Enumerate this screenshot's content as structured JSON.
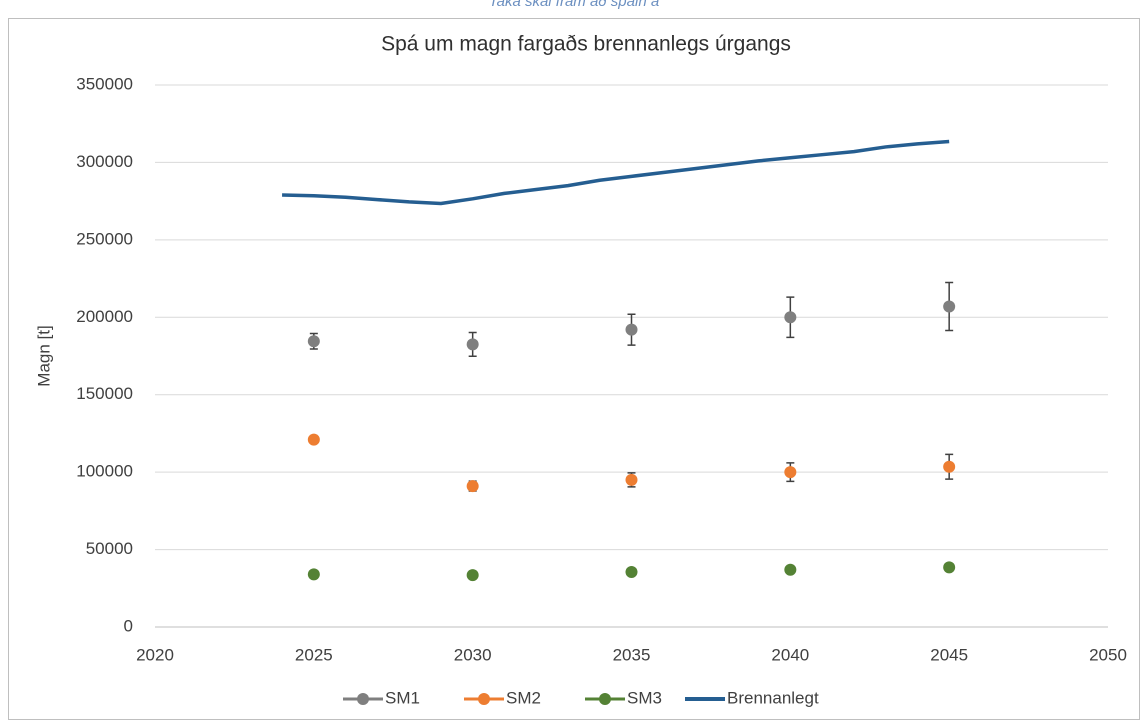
{
  "caption": "Taka skal fram að spáin á",
  "chart_data": {
    "type": "scatter",
    "title": "Spá um magn fargaðs brennanlegs úrgangs",
    "ylabel": "Magn [t]",
    "xlim": [
      2020,
      2050
    ],
    "xticks": [
      2020,
      2025,
      2030,
      2035,
      2040,
      2045,
      2050
    ],
    "ylim": [
      0,
      350000
    ],
    "yticks": [
      0,
      50000,
      100000,
      150000,
      200000,
      250000,
      300000,
      350000
    ],
    "grid": true,
    "legend": "bottom",
    "series": [
      {
        "name": "SM1",
        "color": "#7f7f7f",
        "x": [
          2025,
          2030,
          2035,
          2040,
          2045
        ],
        "values": [
          184500,
          182500,
          192000,
          200000,
          207000
        ],
        "errors": [
          5000,
          7700,
          10000,
          13000,
          15500
        ]
      },
      {
        "name": "SM2",
        "color": "#ed7d31",
        "x": [
          2025,
          2030,
          2035,
          2040,
          2045
        ],
        "values": [
          121000,
          91000,
          95000,
          100000,
          103500
        ],
        "errors": [
          2000,
          3200,
          4500,
          6000,
          8000
        ]
      },
      {
        "name": "SM3",
        "color": "#548235",
        "x": [
          2025,
          2030,
          2035,
          2040,
          2045
        ],
        "values": [
          34000,
          33500,
          35500,
          37000,
          38500
        ],
        "errors": [
          500,
          500,
          1000,
          1500,
          2000
        ]
      },
      {
        "name": "Brennanlegt",
        "color": "#255e91",
        "type": "line",
        "x": [
          2024,
          2025,
          2026,
          2027,
          2028,
          2029,
          2030,
          2031,
          2032,
          2033,
          2034,
          2035,
          2036,
          2037,
          2038,
          2039,
          2040,
          2041,
          2042,
          2043,
          2044,
          2045
        ],
        "values": [
          279000,
          278500,
          277500,
          276000,
          274500,
          273500,
          276500,
          280000,
          282500,
          285000,
          288500,
          291000,
          293500,
          296000,
          298500,
          301000,
          303000,
          305000,
          307000,
          310000,
          312000,
          313500
        ]
      }
    ]
  }
}
